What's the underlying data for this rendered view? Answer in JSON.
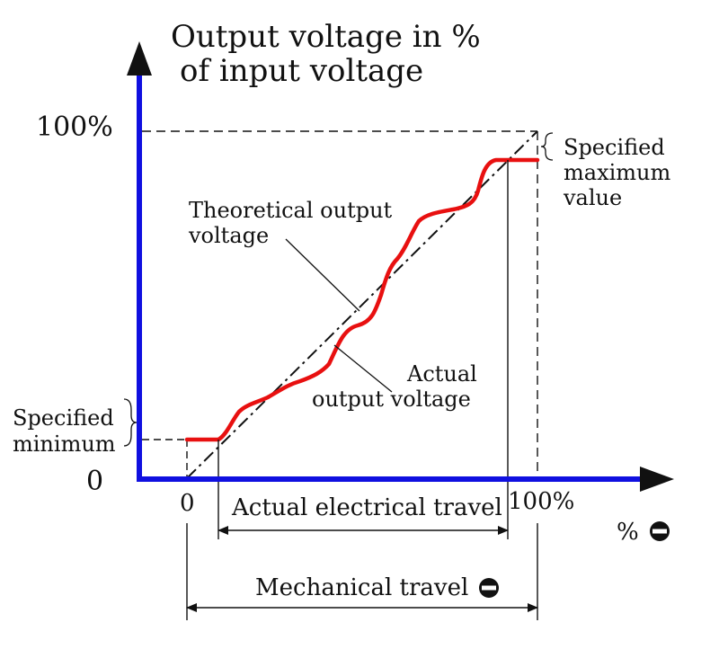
{
  "title": {
    "line1": "Output voltage in %",
    "line2": "of input voltage"
  },
  "ticks": {
    "y_top": "100%",
    "y_zero": "0",
    "x_zero": "0",
    "x_end": "100%"
  },
  "notes": {
    "spec_max_l1": "Specified",
    "spec_max_l2": "maximum",
    "spec_max_l3": "value",
    "spec_min_l1": "Specified",
    "spec_min_l2": "minimum",
    "theoretical_l1": "Theoretical output",
    "theoretical_l2": "voltage",
    "actual_l1": "Actual",
    "actual_l2": "output voltage"
  },
  "dimensions": {
    "electrical_travel": "Actual electrical travel",
    "mechanical_travel": "Mechanical travel"
  },
  "x_axis_unit": "%",
  "theta_symbol": "Θ",
  "colors": {
    "axis": "#1010e0",
    "actual_curve": "#e81010",
    "ink": "#111111"
  }
}
